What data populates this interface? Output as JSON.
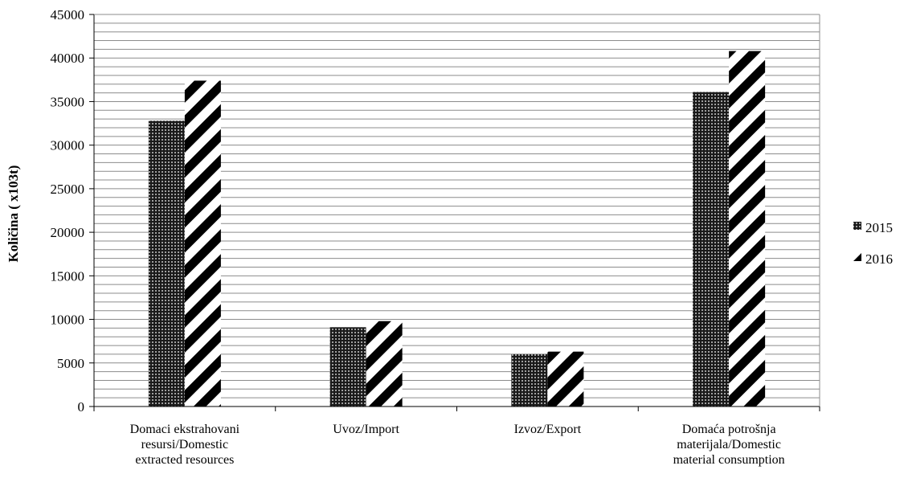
{
  "chart_data": {
    "type": "bar",
    "ylabel": "Količina ( x103t)",
    "xlabel": "",
    "ylim": [
      0,
      45000
    ],
    "yticks": [
      0,
      5000,
      10000,
      15000,
      20000,
      25000,
      30000,
      35000,
      40000,
      45000
    ],
    "grid": true,
    "legend_position": "right",
    "categories": [
      [
        "Domaci ekstrahovani",
        "resursi/Domestic",
        "extracted  resources"
      ],
      [
        "Uvoz/Import"
      ],
      [
        "Izvoz/Export"
      ],
      [
        "Domaća potrošnja",
        "materijala/Domestic",
        "material consumption"
      ]
    ],
    "series": [
      {
        "name": "2015",
        "pattern": "dots",
        "values": [
          32800,
          9100,
          6000,
          36100
        ]
      },
      {
        "name": "2016",
        "pattern": "diagonal-stripes",
        "values": [
          37400,
          9800,
          6300,
          40800
        ]
      }
    ],
    "colors": {
      "bar_fill": "#ffffff",
      "pattern_ink": "#000000",
      "grid": "#8c8c8c",
      "axis": "#000000"
    }
  }
}
